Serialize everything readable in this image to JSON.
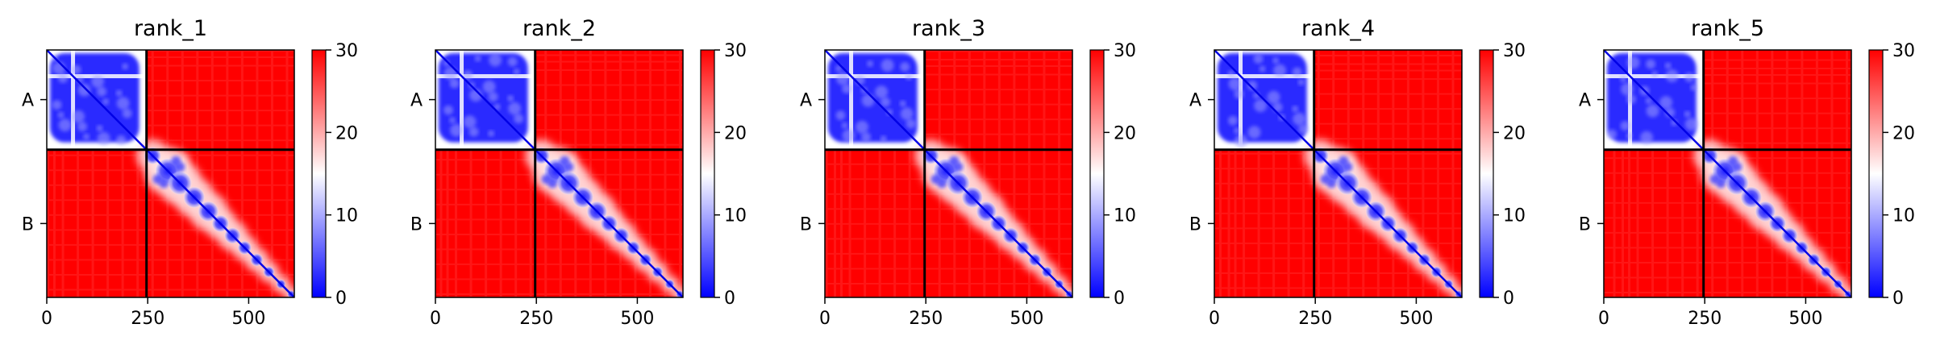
{
  "chart_data": {
    "type": "heatmap",
    "colormap": {
      "name": "bwr",
      "low": "#0000ff",
      "mid": "#ffffff",
      "high": "#ff0000",
      "range": [
        0,
        30
      ]
    },
    "colorbar_ticks": [
      "0",
      "10",
      "20",
      "30"
    ],
    "x_ticks": [
      {
        "value": 0,
        "label": "0"
      },
      {
        "value": 250,
        "label": "250"
      },
      {
        "value": 500,
        "label": "500"
      }
    ],
    "xlim": [
      0,
      613
    ],
    "chain_boundary": 247,
    "chains": [
      {
        "label": "A",
        "center": 123
      },
      {
        "label": "B",
        "center": 430
      }
    ],
    "panels": [
      {
        "title": "rank_1"
      },
      {
        "title": "rank_2"
      },
      {
        "title": "rank_3"
      },
      {
        "title": "rank_4"
      },
      {
        "title": "rank_5"
      }
    ],
    "grid": false
  }
}
